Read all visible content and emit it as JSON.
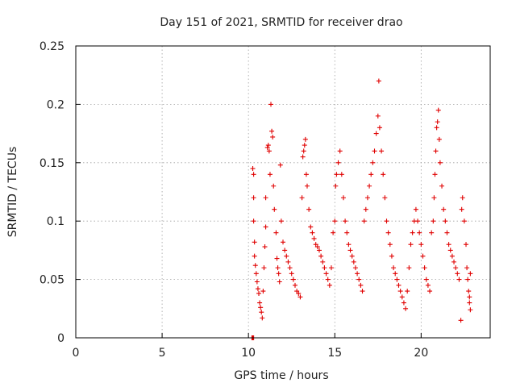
{
  "chart_data": {
    "type": "scatter",
    "title": "Day 151 of 2021, SRMTID for receiver drao",
    "xlabel": "GPS time / hours",
    "ylabel": "SRMTID / TECUs",
    "xlim": [
      0,
      24
    ],
    "ylim": [
      0,
      0.25
    ],
    "x_ticks": [
      {
        "value": 0,
        "label": "0"
      },
      {
        "value": 5,
        "label": "5"
      },
      {
        "value": 10,
        "label": "10"
      },
      {
        "value": 15,
        "label": "15"
      },
      {
        "value": 20,
        "label": "20"
      }
    ],
    "y_ticks": [
      {
        "value": 0,
        "label": "0"
      },
      {
        "value": 0.05,
        "label": "0.05"
      },
      {
        "value": 0.1,
        "label": "0.1"
      },
      {
        "value": 0.15,
        "label": "0.15"
      },
      {
        "value": 0.2,
        "label": "0.2"
      },
      {
        "value": 0.25,
        "label": "0.25"
      }
    ],
    "grid": true,
    "marker": "+",
    "color": "#e00000",
    "series": [
      {
        "name": "SRMTID",
        "points": [
          [
            10.2,
            0.0
          ],
          [
            10.25,
            0.0
          ],
          [
            10.3,
            0.0
          ],
          [
            10.25,
            0.145
          ],
          [
            10.3,
            0.14
          ],
          [
            10.3,
            0.12
          ],
          [
            10.3,
            0.1
          ],
          [
            10.35,
            0.082
          ],
          [
            10.35,
            0.07
          ],
          [
            10.4,
            0.062
          ],
          [
            10.45,
            0.055
          ],
          [
            10.5,
            0.048
          ],
          [
            10.55,
            0.042
          ],
          [
            10.6,
            0.038
          ],
          [
            10.65,
            0.03
          ],
          [
            10.7,
            0.026
          ],
          [
            10.75,
            0.022
          ],
          [
            10.8,
            0.017
          ],
          [
            10.85,
            0.04
          ],
          [
            10.9,
            0.06
          ],
          [
            10.95,
            0.078
          ],
          [
            11.0,
            0.095
          ],
          [
            11.0,
            0.12
          ],
          [
            11.1,
            0.163
          ],
          [
            11.15,
            0.165
          ],
          [
            11.2,
            0.16
          ],
          [
            11.25,
            0.14
          ],
          [
            11.3,
            0.2
          ],
          [
            11.35,
            0.177
          ],
          [
            11.4,
            0.172
          ],
          [
            11.45,
            0.13
          ],
          [
            11.5,
            0.11
          ],
          [
            11.6,
            0.09
          ],
          [
            11.65,
            0.068
          ],
          [
            11.7,
            0.06
          ],
          [
            11.75,
            0.055
          ],
          [
            11.8,
            0.048
          ],
          [
            11.85,
            0.148
          ],
          [
            11.9,
            0.1
          ],
          [
            12.0,
            0.082
          ],
          [
            12.1,
            0.075
          ],
          [
            12.2,
            0.07
          ],
          [
            12.3,
            0.065
          ],
          [
            12.4,
            0.06
          ],
          [
            12.5,
            0.055
          ],
          [
            12.6,
            0.05
          ],
          [
            12.7,
            0.045
          ],
          [
            12.8,
            0.04
          ],
          [
            12.9,
            0.038
          ],
          [
            13.0,
            0.035
          ],
          [
            13.1,
            0.12
          ],
          [
            13.15,
            0.155
          ],
          [
            13.2,
            0.16
          ],
          [
            13.25,
            0.165
          ],
          [
            13.3,
            0.17
          ],
          [
            13.35,
            0.14
          ],
          [
            13.4,
            0.13
          ],
          [
            13.5,
            0.11
          ],
          [
            13.6,
            0.095
          ],
          [
            13.7,
            0.09
          ],
          [
            13.8,
            0.085
          ],
          [
            13.9,
            0.08
          ],
          [
            14.0,
            0.078
          ],
          [
            14.1,
            0.075
          ],
          [
            14.2,
            0.07
          ],
          [
            14.3,
            0.065
          ],
          [
            14.4,
            0.06
          ],
          [
            14.5,
            0.055
          ],
          [
            14.6,
            0.05
          ],
          [
            14.7,
            0.045
          ],
          [
            14.8,
            0.06
          ],
          [
            14.9,
            0.09
          ],
          [
            15.0,
            0.1
          ],
          [
            15.05,
            0.13
          ],
          [
            15.1,
            0.14
          ],
          [
            15.2,
            0.15
          ],
          [
            15.3,
            0.16
          ],
          [
            15.4,
            0.14
          ],
          [
            15.5,
            0.12
          ],
          [
            15.6,
            0.1
          ],
          [
            15.7,
            0.09
          ],
          [
            15.8,
            0.08
          ],
          [
            15.9,
            0.075
          ],
          [
            16.0,
            0.07
          ],
          [
            16.1,
            0.065
          ],
          [
            16.2,
            0.06
          ],
          [
            16.3,
            0.055
          ],
          [
            16.4,
            0.05
          ],
          [
            16.5,
            0.045
          ],
          [
            16.6,
            0.04
          ],
          [
            16.7,
            0.1
          ],
          [
            16.8,
            0.11
          ],
          [
            16.9,
            0.12
          ],
          [
            17.0,
            0.13
          ],
          [
            17.1,
            0.14
          ],
          [
            17.2,
            0.15
          ],
          [
            17.3,
            0.16
          ],
          [
            17.4,
            0.175
          ],
          [
            17.5,
            0.19
          ],
          [
            17.55,
            0.22
          ],
          [
            17.6,
            0.18
          ],
          [
            17.7,
            0.16
          ],
          [
            17.8,
            0.14
          ],
          [
            17.9,
            0.12
          ],
          [
            18.0,
            0.1
          ],
          [
            18.1,
            0.09
          ],
          [
            18.2,
            0.08
          ],
          [
            18.3,
            0.07
          ],
          [
            18.4,
            0.06
          ],
          [
            18.5,
            0.055
          ],
          [
            18.6,
            0.05
          ],
          [
            18.7,
            0.045
          ],
          [
            18.8,
            0.04
          ],
          [
            18.9,
            0.035
          ],
          [
            19.0,
            0.03
          ],
          [
            19.1,
            0.025
          ],
          [
            19.2,
            0.04
          ],
          [
            19.3,
            0.06
          ],
          [
            19.4,
            0.08
          ],
          [
            19.5,
            0.09
          ],
          [
            19.6,
            0.1
          ],
          [
            19.7,
            0.11
          ],
          [
            19.8,
            0.1
          ],
          [
            19.9,
            0.09
          ],
          [
            20.0,
            0.08
          ],
          [
            20.1,
            0.07
          ],
          [
            20.2,
            0.06
          ],
          [
            20.3,
            0.05
          ],
          [
            20.4,
            0.045
          ],
          [
            20.5,
            0.04
          ],
          [
            20.6,
            0.09
          ],
          [
            20.7,
            0.1
          ],
          [
            20.75,
            0.12
          ],
          [
            20.8,
            0.14
          ],
          [
            20.85,
            0.16
          ],
          [
            20.9,
            0.18
          ],
          [
            20.95,
            0.185
          ],
          [
            21.0,
            0.195
          ],
          [
            21.05,
            0.17
          ],
          [
            21.1,
            0.15
          ],
          [
            21.2,
            0.13
          ],
          [
            21.3,
            0.11
          ],
          [
            21.4,
            0.1
          ],
          [
            21.5,
            0.09
          ],
          [
            21.6,
            0.08
          ],
          [
            21.7,
            0.075
          ],
          [
            21.8,
            0.07
          ],
          [
            21.9,
            0.065
          ],
          [
            22.0,
            0.06
          ],
          [
            22.1,
            0.055
          ],
          [
            22.2,
            0.05
          ],
          [
            22.3,
            0.015
          ],
          [
            22.35,
            0.11
          ],
          [
            22.4,
            0.12
          ],
          [
            22.5,
            0.1
          ],
          [
            22.6,
            0.08
          ],
          [
            22.65,
            0.06
          ],
          [
            22.7,
            0.05
          ],
          [
            22.75,
            0.04
          ],
          [
            22.8,
            0.035
          ],
          [
            22.8,
            0.03
          ],
          [
            22.85,
            0.024
          ],
          [
            22.85,
            0.055
          ]
        ]
      }
    ]
  }
}
